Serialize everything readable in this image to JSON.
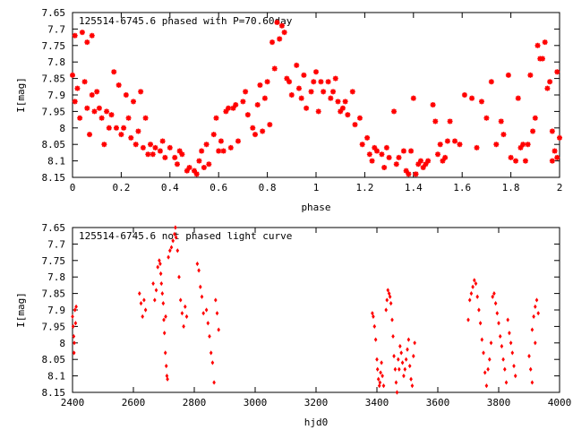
{
  "chart_data": [
    {
      "type": "scatter",
      "title": "125514-6745.6 phased with P=70.60day",
      "xlabel": "phase",
      "ylabel": "I[mag]",
      "xlim": [
        0,
        2
      ],
      "ylim": [
        7.65,
        8.15
      ],
      "y_inverted": true,
      "grid": false,
      "marker_color": "#ff0000",
      "x_ticks": [
        "0",
        "0.2",
        "0.4",
        "0.6",
        "0.8",
        "1",
        "1.2",
        "1.4",
        "1.6",
        "1.8",
        "2"
      ],
      "y_ticks": [
        "7.65",
        "7.7",
        "7.75",
        "7.8",
        "7.85",
        "7.9",
        "7.95",
        "8",
        "8.05",
        "8.1",
        "8.15"
      ],
      "points": [
        [
          0.0,
          7.84
        ],
        [
          0.01,
          7.72
        ],
        [
          0.01,
          7.92
        ],
        [
          0.02,
          7.88
        ],
        [
          0.03,
          7.97
        ],
        [
          0.04,
          7.71
        ],
        [
          0.05,
          7.86
        ],
        [
          0.06,
          7.74
        ],
        [
          0.06,
          7.94
        ],
        [
          0.07,
          8.02
        ],
        [
          0.08,
          7.72
        ],
        [
          0.08,
          7.9
        ],
        [
          0.09,
          7.95
        ],
        [
          0.1,
          7.89
        ],
        [
          0.11,
          7.94
        ],
        [
          0.12,
          7.97
        ],
        [
          0.13,
          8.05
        ],
        [
          0.14,
          7.95
        ],
        [
          0.15,
          8.0
        ],
        [
          0.16,
          7.96
        ],
        [
          0.17,
          7.83
        ],
        [
          0.18,
          8.0
        ],
        [
          0.19,
          7.87
        ],
        [
          0.2,
          8.02
        ],
        [
          0.21,
          8.0
        ],
        [
          0.22,
          7.9
        ],
        [
          0.23,
          7.97
        ],
        [
          0.24,
          8.03
        ],
        [
          0.25,
          7.92
        ],
        [
          0.26,
          8.05
        ],
        [
          0.27,
          8.01
        ],
        [
          0.28,
          7.89
        ],
        [
          0.29,
          8.06
        ],
        [
          0.3,
          7.97
        ],
        [
          0.31,
          8.08
        ],
        [
          0.32,
          8.05
        ],
        [
          0.33,
          8.08
        ],
        [
          0.34,
          8.06
        ],
        [
          0.36,
          8.07
        ],
        [
          0.37,
          8.04
        ],
        [
          0.38,
          8.09
        ],
        [
          0.4,
          8.06
        ],
        [
          0.42,
          8.09
        ],
        [
          0.43,
          8.11
        ],
        [
          0.44,
          8.07
        ],
        [
          0.45,
          8.08
        ],
        [
          0.47,
          8.13
        ],
        [
          0.48,
          8.12
        ],
        [
          0.5,
          8.13
        ],
        [
          0.51,
          8.14
        ],
        [
          0.52,
          8.1
        ],
        [
          0.53,
          8.07
        ],
        [
          0.54,
          8.12
        ],
        [
          0.55,
          8.05
        ],
        [
          0.56,
          8.11
        ],
        [
          0.58,
          8.02
        ],
        [
          0.59,
          7.97
        ],
        [
          0.6,
          8.07
        ],
        [
          0.61,
          8.04
        ],
        [
          0.62,
          8.07
        ],
        [
          0.63,
          7.95
        ],
        [
          0.64,
          7.94
        ],
        [
          0.65,
          8.06
        ],
        [
          0.66,
          7.94
        ],
        [
          0.67,
          7.93
        ],
        [
          0.68,
          8.04
        ],
        [
          0.7,
          7.92
        ],
        [
          0.71,
          7.89
        ],
        [
          0.72,
          7.96
        ],
        [
          0.74,
          8.0
        ],
        [
          0.75,
          8.02
        ],
        [
          0.76,
          7.93
        ],
        [
          0.77,
          7.87
        ],
        [
          0.78,
          8.01
        ],
        [
          0.79,
          7.91
        ],
        [
          0.8,
          7.86
        ],
        [
          0.81,
          7.99
        ],
        [
          0.82,
          7.74
        ],
        [
          0.83,
          7.82
        ],
        [
          0.84,
          7.68
        ],
        [
          0.85,
          7.73
        ],
        [
          0.86,
          7.69
        ],
        [
          0.87,
          7.71
        ],
        [
          0.88,
          7.85
        ],
        [
          0.89,
          7.86
        ],
        [
          0.9,
          7.9
        ],
        [
          0.92,
          7.81
        ],
        [
          0.93,
          7.88
        ],
        [
          0.94,
          7.91
        ],
        [
          0.95,
          7.84
        ],
        [
          0.96,
          7.94
        ],
        [
          0.98,
          7.89
        ],
        [
          0.99,
          7.86
        ],
        [
          1.0,
          7.83
        ],
        [
          1.01,
          7.95
        ],
        [
          1.02,
          7.86
        ],
        [
          1.03,
          7.89
        ],
        [
          1.05,
          7.86
        ],
        [
          1.06,
          7.91
        ],
        [
          1.07,
          7.89
        ],
        [
          1.08,
          7.85
        ],
        [
          1.09,
          7.92
        ],
        [
          1.1,
          7.95
        ],
        [
          1.11,
          7.94
        ],
        [
          1.12,
          7.92
        ],
        [
          1.13,
          7.96
        ],
        [
          1.15,
          7.89
        ],
        [
          1.16,
          7.99
        ],
        [
          1.18,
          7.97
        ],
        [
          1.19,
          8.05
        ],
        [
          1.21,
          8.03
        ],
        [
          1.22,
          8.08
        ],
        [
          1.23,
          8.1
        ],
        [
          1.24,
          8.06
        ],
        [
          1.25,
          8.07
        ],
        [
          1.27,
          8.08
        ],
        [
          1.28,
          8.12
        ],
        [
          1.29,
          8.06
        ],
        [
          1.3,
          8.09
        ],
        [
          1.32,
          7.95
        ],
        [
          1.33,
          8.11
        ],
        [
          1.34,
          8.09
        ],
        [
          1.36,
          8.07
        ],
        [
          1.37,
          8.13
        ],
        [
          1.38,
          8.14
        ],
        [
          1.39,
          8.07
        ],
        [
          1.4,
          7.91
        ],
        [
          1.41,
          8.14
        ],
        [
          1.42,
          8.11
        ],
        [
          1.43,
          8.1
        ],
        [
          1.44,
          8.12
        ],
        [
          1.45,
          8.11
        ],
        [
          1.46,
          8.1
        ],
        [
          1.48,
          7.93
        ],
        [
          1.49,
          7.98
        ],
        [
          1.5,
          8.08
        ],
        [
          1.51,
          8.05
        ],
        [
          1.52,
          8.1
        ],
        [
          1.53,
          8.09
        ],
        [
          1.54,
          8.04
        ],
        [
          1.55,
          7.98
        ],
        [
          1.57,
          8.04
        ],
        [
          1.59,
          8.05
        ],
        [
          1.61,
          7.9
        ],
        [
          1.64,
          7.91
        ],
        [
          1.66,
          8.06
        ],
        [
          1.68,
          7.92
        ],
        [
          1.7,
          7.97
        ],
        [
          1.72,
          7.86
        ],
        [
          1.74,
          8.05
        ],
        [
          1.76,
          7.98
        ],
        [
          1.77,
          8.02
        ],
        [
          1.79,
          7.84
        ],
        [
          1.8,
          8.09
        ],
        [
          1.82,
          8.1
        ],
        [
          1.83,
          7.91
        ],
        [
          1.84,
          8.06
        ],
        [
          1.85,
          8.05
        ],
        [
          1.86,
          8.1
        ],
        [
          1.87,
          8.05
        ],
        [
          1.88,
          7.84
        ],
        [
          1.89,
          8.01
        ],
        [
          1.9,
          7.97
        ],
        [
          1.91,
          7.75
        ],
        [
          1.92,
          7.79
        ],
        [
          1.93,
          7.79
        ],
        [
          1.94,
          7.74
        ],
        [
          1.95,
          7.88
        ],
        [
          1.96,
          7.86
        ],
        [
          1.97,
          8.01
        ],
        [
          1.98,
          8.07
        ],
        [
          1.99,
          7.83
        ],
        [
          2.0,
          8.03
        ],
        [
          1.97,
          8.1
        ],
        [
          1.99,
          8.09
        ]
      ]
    },
    {
      "type": "scatter",
      "title": "125514-6745.6 not phased light curve",
      "xlabel": "hjd0",
      "ylabel": "I[mag]",
      "xlim": [
        2400,
        4000
      ],
      "ylim": [
        7.65,
        8.15
      ],
      "y_inverted": true,
      "grid": false,
      "marker_color": "#ff0000",
      "x_ticks": [
        "2400",
        "2600",
        "2800",
        "3000",
        "3200",
        "3400",
        "3600",
        "3800",
        "4000"
      ],
      "y_ticks": [
        "7.65",
        "7.7",
        "7.75",
        "7.8",
        "7.85",
        "7.9",
        "7.95",
        "8",
        "8.05",
        "8.1",
        "8.15"
      ],
      "points": [
        [
          2400,
          7.92
        ],
        [
          2402,
          7.95
        ],
        [
          2404,
          7.98
        ],
        [
          2406,
          8.0
        ],
        [
          2408,
          7.9
        ],
        [
          2410,
          7.94
        ],
        [
          2412,
          7.89
        ],
        [
          2405,
          8.03
        ],
        [
          2620,
          7.85
        ],
        [
          2625,
          7.88
        ],
        [
          2630,
          7.92
        ],
        [
          2635,
          7.87
        ],
        [
          2640,
          7.9
        ],
        [
          2665,
          7.82
        ],
        [
          2670,
          7.87
        ],
        [
          2675,
          7.84
        ],
        [
          2680,
          7.77
        ],
        [
          2685,
          7.75
        ],
        [
          2688,
          7.76
        ],
        [
          2690,
          7.79
        ],
        [
          2692,
          7.82
        ],
        [
          2695,
          7.85
        ],
        [
          2698,
          7.88
        ],
        [
          2700,
          7.93
        ],
        [
          2702,
          7.97
        ],
        [
          2705,
          8.03
        ],
        [
          2708,
          8.07
        ],
        [
          2710,
          8.1
        ],
        [
          2712,
          8.11
        ],
        [
          2706,
          7.92
        ],
        [
          2715,
          7.74
        ],
        [
          2720,
          7.72
        ],
        [
          2725,
          7.71
        ],
        [
          2730,
          7.69
        ],
        [
          2735,
          7.67
        ],
        [
          2738,
          7.65
        ],
        [
          2740,
          7.68
        ],
        [
          2745,
          7.72
        ],
        [
          2750,
          7.8
        ],
        [
          2755,
          7.87
        ],
        [
          2760,
          7.91
        ],
        [
          2765,
          7.95
        ],
        [
          2770,
          7.89
        ],
        [
          2775,
          7.92
        ],
        [
          2810,
          7.76
        ],
        [
          2815,
          7.78
        ],
        [
          2820,
          7.83
        ],
        [
          2825,
          7.86
        ],
        [
          2830,
          7.91
        ],
        [
          2840,
          7.9
        ],
        [
          2845,
          7.94
        ],
        [
          2850,
          7.98
        ],
        [
          2855,
          8.03
        ],
        [
          2860,
          8.06
        ],
        [
          2865,
          8.12
        ],
        [
          2870,
          7.87
        ],
        [
          2875,
          7.91
        ],
        [
          2880,
          7.96
        ],
        [
          3385,
          7.91
        ],
        [
          3388,
          7.92
        ],
        [
          3392,
          7.95
        ],
        [
          3396,
          7.99
        ],
        [
          3400,
          8.05
        ],
        [
          3402,
          8.08
        ],
        [
          3405,
          8.11
        ],
        [
          3408,
          8.13
        ],
        [
          3410,
          8.12
        ],
        [
          3412,
          8.09
        ],
        [
          3415,
          8.06
        ],
        [
          3418,
          8.1
        ],
        [
          3422,
          8.13
        ],
        [
          3430,
          7.9
        ],
        [
          3433,
          7.87
        ],
        [
          3436,
          7.84
        ],
        [
          3440,
          7.85
        ],
        [
          3443,
          7.86
        ],
        [
          3446,
          7.88
        ],
        [
          3450,
          7.93
        ],
        [
          3453,
          7.98
        ],
        [
          3456,
          8.04
        ],
        [
          3460,
          8.08
        ],
        [
          3463,
          8.12
        ],
        [
          3466,
          8.15
        ],
        [
          3470,
          8.05
        ],
        [
          3473,
          8.08
        ],
        [
          3476,
          8.01
        ],
        [
          3480,
          8.03
        ],
        [
          3484,
          8.06
        ],
        [
          3488,
          8.1
        ],
        [
          3492,
          8.08
        ],
        [
          3496,
          8.05
        ],
        [
          3500,
          8.02
        ],
        [
          3504,
          7.99
        ],
        [
          3508,
          8.07
        ],
        [
          3512,
          8.11
        ],
        [
          3516,
          8.13
        ],
        [
          3520,
          8.04
        ],
        [
          3524,
          8.0
        ],
        [
          3700,
          7.93
        ],
        [
          3705,
          7.87
        ],
        [
          3710,
          7.85
        ],
        [
          3715,
          7.83
        ],
        [
          3720,
          7.81
        ],
        [
          3725,
          7.82
        ],
        [
          3730,
          7.86
        ],
        [
          3735,
          7.9
        ],
        [
          3740,
          7.94
        ],
        [
          3745,
          7.99
        ],
        [
          3750,
          8.03
        ],
        [
          3755,
          8.09
        ],
        [
          3760,
          8.13
        ],
        [
          3765,
          8.08
        ],
        [
          3770,
          8.05
        ],
        [
          3775,
          8.0
        ],
        [
          3780,
          7.86
        ],
        [
          3785,
          7.85
        ],
        [
          3790,
          7.88
        ],
        [
          3795,
          7.91
        ],
        [
          3800,
          7.94
        ],
        [
          3805,
          7.98
        ],
        [
          3810,
          8.01
        ],
        [
          3815,
          8.05
        ],
        [
          3820,
          8.08
        ],
        [
          3825,
          8.12
        ],
        [
          3830,
          7.93
        ],
        [
          3835,
          7.97
        ],
        [
          3840,
          8.0
        ],
        [
          3845,
          8.03
        ],
        [
          3850,
          8.07
        ],
        [
          3855,
          8.1
        ],
        [
          3900,
          8.04
        ],
        [
          3905,
          8.08
        ],
        [
          3910,
          8.12
        ],
        [
          3915,
          7.92
        ],
        [
          3920,
          7.89
        ],
        [
          3925,
          7.87
        ],
        [
          3930,
          7.91
        ],
        [
          3910,
          7.96
        ],
        [
          3920,
          8.0
        ]
      ]
    }
  ]
}
